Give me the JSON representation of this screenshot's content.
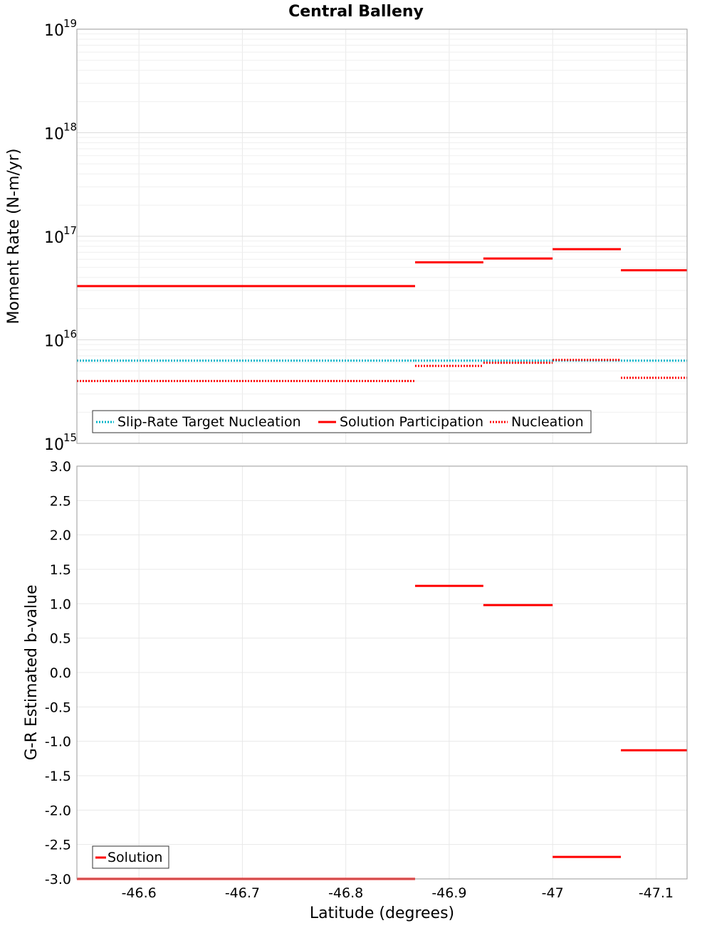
{
  "title": "Central Balleny",
  "chart_data": [
    {
      "type": "line",
      "panel": "top",
      "ylabel": "Moment Rate (N-m/yr)",
      "yscale": "log",
      "ylim": [
        1000000000000000.0,
        1e+19
      ],
      "xlim": [
        -46.54,
        -47.13
      ],
      "y_ticks": [
        {
          "base": "10",
          "exp": "15",
          "value": 1000000000000000.0
        },
        {
          "base": "10",
          "exp": "16",
          "value": 1e+16
        },
        {
          "base": "10",
          "exp": "17",
          "value": 1e+17
        },
        {
          "base": "10",
          "exp": "18",
          "value": 1e+18
        },
        {
          "base": "10",
          "exp": "19",
          "value": 1e+19
        }
      ],
      "legend": {
        "placement": "bottom-left",
        "entries": [
          "Slip-Rate Target Nucleation",
          "Solution Participation",
          "Nucleation"
        ]
      },
      "series": [
        {
          "name": "Slip-Rate Target Nucleation",
          "color": "#00b4c8",
          "style": "dotted",
          "segments": [
            [
              -46.54,
              -46.867,
              6300000000000000.0
            ],
            [
              -46.867,
              -46.933,
              6300000000000000.0
            ],
            [
              -46.933,
              -47.0,
              6300000000000000.0
            ],
            [
              -47.0,
              -47.066,
              6300000000000000.0
            ],
            [
              -47.066,
              -47.13,
              6300000000000000.0
            ]
          ]
        },
        {
          "name": "Solution Participation",
          "color": "#ff0000",
          "style": "solid",
          "segments": [
            [
              -46.54,
              -46.867,
              3.3e+16
            ],
            [
              -46.867,
              -46.933,
              5.6e+16
            ],
            [
              -46.933,
              -47.0,
              6.1e+16
            ],
            [
              -47.0,
              -47.066,
              7.5e+16
            ],
            [
              -47.066,
              -47.13,
              4.7e+16
            ]
          ]
        },
        {
          "name": "Nucleation",
          "color": "#ff0000",
          "style": "dotted",
          "segments": [
            [
              -46.54,
              -46.867,
              4000000000000000.0
            ],
            [
              -46.867,
              -46.933,
              5600000000000000.0
            ],
            [
              -46.933,
              -47.0,
              6000000000000000.0
            ],
            [
              -47.0,
              -47.066,
              6400000000000000.0
            ],
            [
              -47.066,
              -47.13,
              4300000000000000.0
            ]
          ]
        }
      ]
    },
    {
      "type": "line",
      "panel": "bottom",
      "xlabel": "Latitude (degrees)",
      "ylabel": "G-R Estimated b-value",
      "ylim": [
        -3.0,
        3.0
      ],
      "xlim": [
        -46.54,
        -47.13
      ],
      "x_ticks": [
        "-46.6",
        "-46.7",
        "-46.8",
        "-46.9",
        "-47",
        "-47.1"
      ],
      "x_tick_values": [
        -46.6,
        -46.7,
        -46.8,
        -46.9,
        -47.0,
        -47.1
      ],
      "y_ticks": [
        "3.0",
        "2.5",
        "2.0",
        "1.5",
        "1.0",
        "0.5",
        "0.0",
        "-0.5",
        "-1.0",
        "-1.5",
        "-2.0",
        "-2.5",
        "-3.0"
      ],
      "y_tick_values": [
        3.0,
        2.5,
        2.0,
        1.5,
        1.0,
        0.5,
        0.0,
        -0.5,
        -1.0,
        -1.5,
        -2.0,
        -2.5,
        -3.0
      ],
      "legend": {
        "placement": "bottom-left",
        "entries": [
          "Solution"
        ]
      },
      "series": [
        {
          "name": "Solution",
          "color": "#ff0000",
          "style": "solid",
          "segments": [
            [
              -46.54,
              -46.867,
              -3.0
            ],
            [
              -46.867,
              -46.933,
              1.26
            ],
            [
              -46.933,
              -47.0,
              0.98
            ],
            [
              -47.0,
              -47.066,
              -2.68
            ],
            [
              -47.066,
              -47.13,
              -1.13
            ]
          ]
        }
      ]
    }
  ]
}
